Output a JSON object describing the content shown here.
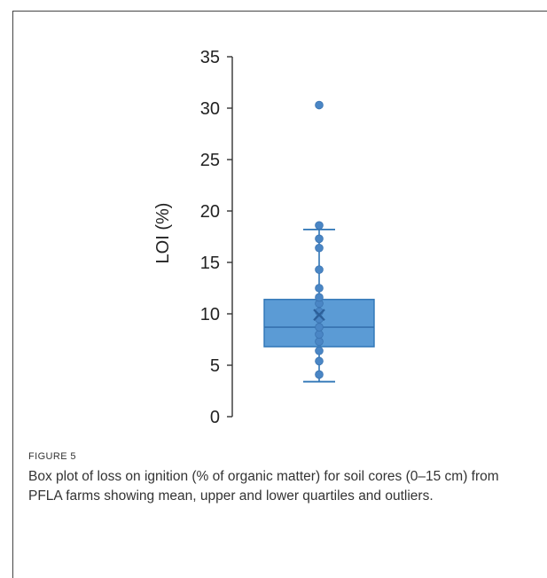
{
  "figure": {
    "label": "FIGURE 5",
    "caption": "Box plot of loss on ignition (% of organic matter) for soil cores (0–15 cm) from PFLA farms showing mean, upper and lower quartiles and outliers."
  },
  "chart_data": {
    "type": "box",
    "ylabel": "LOI (%)",
    "xlabel": "",
    "title": "",
    "ylim": [
      0,
      35
    ],
    "yticks": [
      0,
      5,
      10,
      15,
      20,
      25,
      30,
      35
    ],
    "grid": false,
    "box": {
      "min": 3.4,
      "q1": 6.8,
      "median": 8.7,
      "mean": 9.9,
      "q3": 11.4,
      "max": 18.2
    },
    "points": [
      4.1,
      5.4,
      6.4,
      7.3,
      8.0,
      8.7,
      9.5,
      10.2,
      11.0,
      11.6,
      12.5,
      14.3,
      16.4,
      17.3,
      18.6,
      30.3
    ],
    "outliers": [
      30.3
    ],
    "colors": {
      "box_fill": "#5b9bd5",
      "box_stroke": "#2e75b6",
      "points": "#4a86c5",
      "axis": "#333333"
    }
  }
}
